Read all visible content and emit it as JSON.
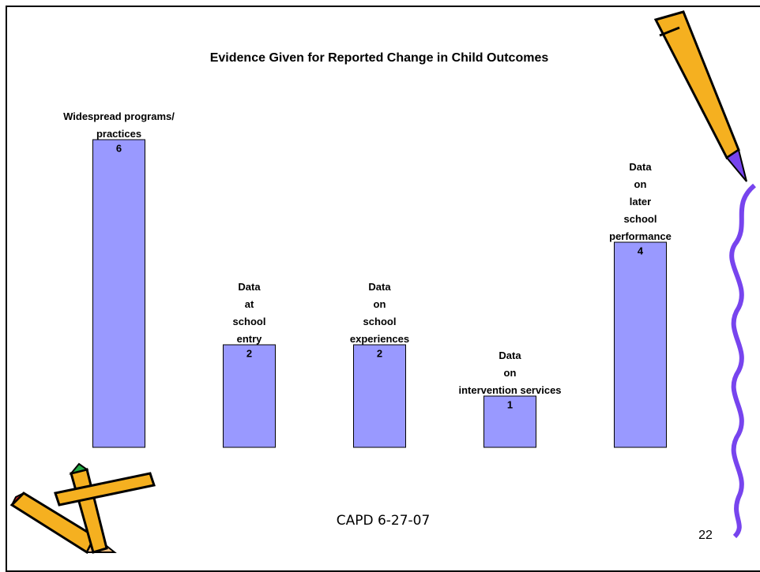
{
  "chart_data": {
    "type": "bar",
    "title": "Evidence Given for Reported Change in Child Outcomes",
    "categories": [
      "Widespread programs/\npractices",
      "Data\nat\nschool\nentry",
      "Data\non\nschool\nexperiences",
      "Data\non\nintervention services",
      "Data\non\nlater\nschool\nperformance"
    ],
    "values": [
      6,
      2,
      2,
      1,
      4
    ],
    "color": "#9999ff",
    "ylim": [
      0,
      6
    ]
  },
  "footer": "CAPD  6-27-07",
  "page_number": "22"
}
